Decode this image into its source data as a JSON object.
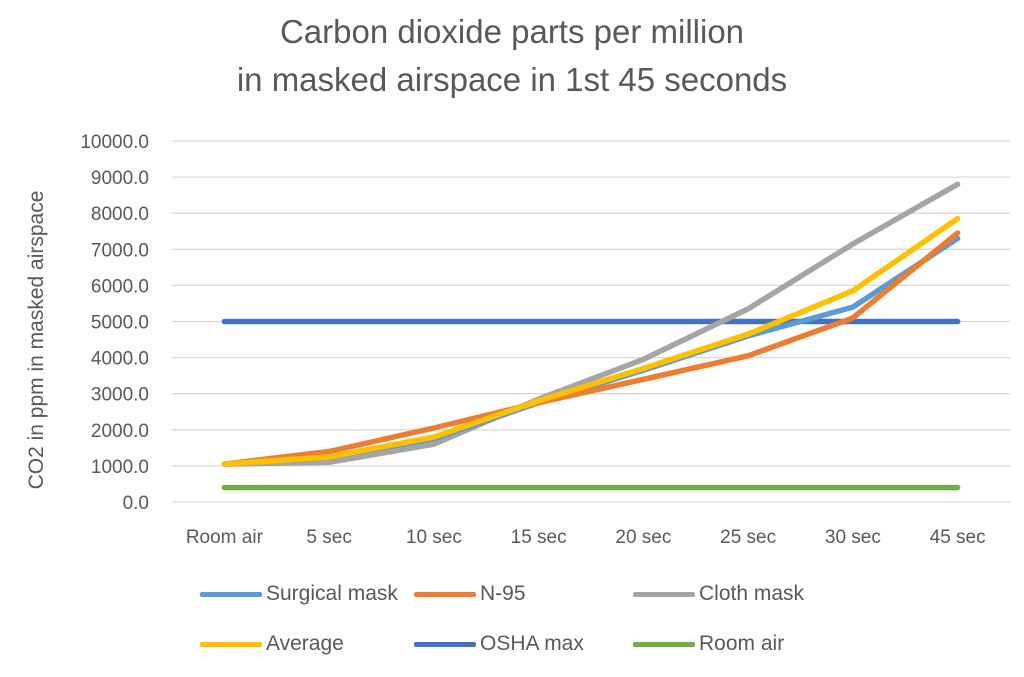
{
  "chart_data": {
    "type": "line",
    "title_lines": [
      "Carbon dioxide parts per million",
      "in masked airspace in 1st 45 seconds"
    ],
    "xlabel": "",
    "ylabel": "CO2 in ppm in masked airspace",
    "categories": [
      "Room air",
      "5 sec",
      "10 sec",
      "15 sec",
      "20 sec",
      "25 sec",
      "30 sec",
      "45 sec"
    ],
    "ylim": [
      0,
      10000
    ],
    "yticks": [
      0,
      1000,
      2000,
      3000,
      4000,
      5000,
      6000,
      7000,
      8000,
      9000,
      10000
    ],
    "ytick_labels": [
      "0.0",
      "1000.0",
      "2000.0",
      "3000.0",
      "4000.0",
      "5000.0",
      "6000.0",
      "7000.0",
      "8000.0",
      "9000.0",
      "10000.0"
    ],
    "grid": "horizontal",
    "legend_position": "bottom",
    "series": [
      {
        "name": "Surgical mask",
        "color": "#5B9BD5",
        "values": [
          1050,
          1250,
          1750,
          2750,
          3650,
          4600,
          5400,
          7300
        ]
      },
      {
        "name": "N-95",
        "color": "#ED7D31",
        "values": [
          1050,
          1400,
          2050,
          2750,
          3400,
          4050,
          5100,
          7450
        ]
      },
      {
        "name": "Cloth mask",
        "color": "#A5A5A5",
        "values": [
          1050,
          1100,
          1600,
          2850,
          3950,
          5350,
          7150,
          8800
        ]
      },
      {
        "name": "Average",
        "color": "#FFC000",
        "values": [
          1050,
          1250,
          1800,
          2800,
          3700,
          4650,
          5850,
          7850
        ]
      },
      {
        "name": "OSHA max",
        "color": "#4472C4",
        "values": [
          5000,
          5000,
          5000,
          5000,
          5000,
          5000,
          5000,
          5000
        ]
      },
      {
        "name": "Room air",
        "color": "#70AD47",
        "values": [
          400,
          400,
          400,
          400,
          400,
          400,
          400,
          400
        ]
      }
    ]
  }
}
